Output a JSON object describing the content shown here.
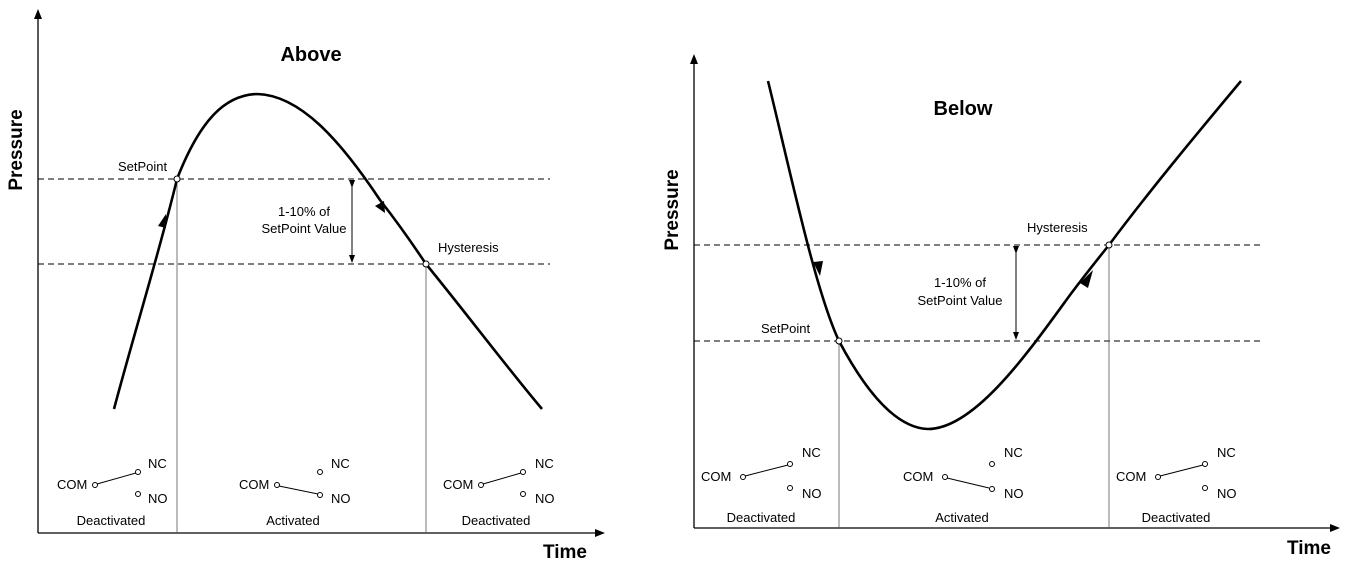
{
  "left": {
    "title": "Above",
    "y_axis": "Pressure",
    "x_axis": "Time",
    "setpoint_label": "SetPoint",
    "hysteresis_label": "Hysteresis",
    "range_line1": "1-10% of",
    "range_line2": "SetPoint Value",
    "states": [
      "Deactivated",
      "Activated",
      "Deactivated"
    ],
    "contacts": {
      "com": "COM",
      "nc": "NC",
      "no": "NO"
    }
  },
  "right": {
    "title": "Below",
    "y_axis": "Pressure",
    "x_axis": "Time",
    "setpoint_label": "SetPoint",
    "hysteresis_label": "Hysteresis",
    "range_line1": "1-10% of",
    "range_line2": "SetPoint Value",
    "states": [
      "Deactivated",
      "Activated",
      "Deactivated"
    ],
    "contacts": {
      "com": "COM",
      "nc": "NC",
      "no": "NO"
    }
  }
}
